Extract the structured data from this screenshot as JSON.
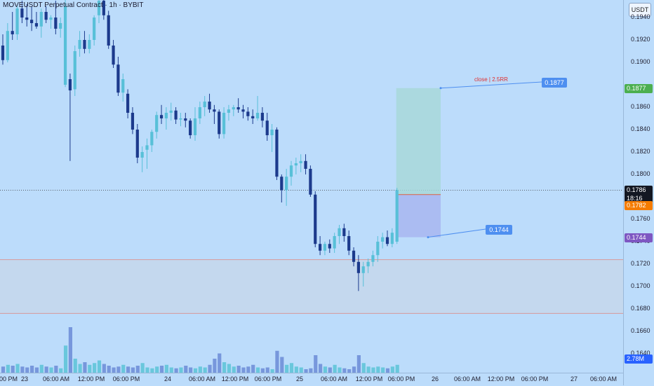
{
  "header": {
    "title": "MOVEUSDT Perpetual Contract · 1h · BYBIT"
  },
  "currency": "USDT",
  "price_axis": {
    "ticks": [
      "0.1940",
      "0.1920",
      "0.1900",
      "0.1860",
      "0.1840",
      "0.1820",
      "0.1800",
      "0.1760",
      "0.1740",
      "0.1720",
      "0.1700",
      "0.1680",
      "0.1660",
      "0.1640"
    ]
  },
  "price_labels": {
    "target": "0.1877",
    "current": "0.1786",
    "countdown": "18:16",
    "entry": "0.1782",
    "stop": "0.1744",
    "volume": "2.78M"
  },
  "colors": {
    "target": "#4caf50",
    "current": "#131722",
    "entry": "#f57c00",
    "stop": "#7e57c2",
    "volume": "#2962ff",
    "callout": "#4e8ff0",
    "bull": "#58c0d8",
    "bear": "#1c3a8c"
  },
  "callouts": {
    "target": "0.1877",
    "stop": "0.1744",
    "annotation": "close | 2.5RR"
  },
  "time_axis": {
    "labels": [
      "00 PM",
      "23",
      "06:00 AM",
      "12:00 PM",
      "06:00 PM",
      "24",
      "06:00 AM",
      "12:00 PM",
      "06:00 PM",
      "25",
      "06:00 AM",
      "12:00 PM",
      "06:00 PM",
      "26",
      "06:00 AM",
      "12:00 PM",
      "06:00 PM",
      "27",
      "06:00 AM"
    ]
  },
  "chart_data": {
    "type": "candlestick",
    "price_range": [
      0.162,
      0.196
    ],
    "time_start": "2024-11-22 20:00",
    "interval": "1h",
    "candles": [
      {
        "o": 0.1915,
        "h": 0.1925,
        "l": 0.1898,
        "c": 0.1902
      },
      {
        "o": 0.1902,
        "h": 0.1935,
        "l": 0.19,
        "c": 0.1928
      },
      {
        "o": 0.1928,
        "h": 0.1945,
        "l": 0.192,
        "c": 0.1925
      },
      {
        "o": 0.1925,
        "h": 0.195,
        "l": 0.192,
        "c": 0.1948
      },
      {
        "o": 0.1948,
        "h": 0.1955,
        "l": 0.1935,
        "c": 0.194
      },
      {
        "o": 0.194,
        "h": 0.1952,
        "l": 0.1932,
        "c": 0.1938
      },
      {
        "o": 0.1938,
        "h": 0.195,
        "l": 0.1928,
        "c": 0.1935
      },
      {
        "o": 0.1935,
        "h": 0.1945,
        "l": 0.193,
        "c": 0.1932
      },
      {
        "o": 0.1932,
        "h": 0.1948,
        "l": 0.1922,
        "c": 0.1945
      },
      {
        "o": 0.1945,
        "h": 0.195,
        "l": 0.1935,
        "c": 0.1938
      },
      {
        "o": 0.1938,
        "h": 0.1942,
        "l": 0.193,
        "c": 0.194
      },
      {
        "o": 0.194,
        "h": 0.1955,
        "l": 0.1925,
        "c": 0.193
      },
      {
        "o": 0.193,
        "h": 0.194,
        "l": 0.1922,
        "c": 0.1935
      },
      {
        "o": 0.188,
        "h": 0.1958,
        "l": 0.1878,
        "c": 0.195
      },
      {
        "o": 0.1885,
        "h": 0.189,
        "l": 0.1812,
        "c": 0.1875
      },
      {
        "o": 0.1876,
        "h": 0.1915,
        "l": 0.187,
        "c": 0.191
      },
      {
        "o": 0.1912,
        "h": 0.1928,
        "l": 0.1905,
        "c": 0.192
      },
      {
        "o": 0.192,
        "h": 0.1928,
        "l": 0.1908,
        "c": 0.1912
      },
      {
        "o": 0.1912,
        "h": 0.1925,
        "l": 0.1908,
        "c": 0.192
      },
      {
        "o": 0.192,
        "h": 0.1942,
        "l": 0.1915,
        "c": 0.194
      },
      {
        "o": 0.1942,
        "h": 0.1958,
        "l": 0.1935,
        "c": 0.1955
      },
      {
        "o": 0.1955,
        "h": 0.196,
        "l": 0.1938,
        "c": 0.1942
      },
      {
        "o": 0.1942,
        "h": 0.1946,
        "l": 0.1912,
        "c": 0.1915
      },
      {
        "o": 0.1915,
        "h": 0.192,
        "l": 0.1895,
        "c": 0.1898
      },
      {
        "o": 0.1898,
        "h": 0.1905,
        "l": 0.187,
        "c": 0.1873
      },
      {
        "o": 0.1873,
        "h": 0.189,
        "l": 0.1865,
        "c": 0.1885
      },
      {
        "o": 0.1872,
        "h": 0.1876,
        "l": 0.185,
        "c": 0.1855
      },
      {
        "o": 0.1855,
        "h": 0.186,
        "l": 0.1836,
        "c": 0.184
      },
      {
        "o": 0.184,
        "h": 0.1845,
        "l": 0.181,
        "c": 0.1815
      },
      {
        "o": 0.1815,
        "h": 0.1825,
        "l": 0.1802,
        "c": 0.182
      },
      {
        "o": 0.1822,
        "h": 0.1832,
        "l": 0.1805,
        "c": 0.1826
      },
      {
        "o": 0.1826,
        "h": 0.184,
        "l": 0.182,
        "c": 0.1838
      },
      {
        "o": 0.1838,
        "h": 0.1856,
        "l": 0.1832,
        "c": 0.1853
      },
      {
        "o": 0.1853,
        "h": 0.1862,
        "l": 0.1845,
        "c": 0.185
      },
      {
        "o": 0.185,
        "h": 0.186,
        "l": 0.184,
        "c": 0.1855
      },
      {
        "o": 0.1855,
        "h": 0.1864,
        "l": 0.1848,
        "c": 0.1857
      },
      {
        "o": 0.1857,
        "h": 0.186,
        "l": 0.1845,
        "c": 0.1849
      },
      {
        "o": 0.1849,
        "h": 0.1855,
        "l": 0.1843,
        "c": 0.185
      },
      {
        "o": 0.185,
        "h": 0.1855,
        "l": 0.1842,
        "c": 0.1848
      },
      {
        "o": 0.1848,
        "h": 0.185,
        "l": 0.1832,
        "c": 0.1835
      },
      {
        "o": 0.1835,
        "h": 0.186,
        "l": 0.183,
        "c": 0.185
      },
      {
        "o": 0.185,
        "h": 0.1865,
        "l": 0.1845,
        "c": 0.186
      },
      {
        "o": 0.186,
        "h": 0.187,
        "l": 0.1852,
        "c": 0.1865
      },
      {
        "o": 0.1865,
        "h": 0.1872,
        "l": 0.1855,
        "c": 0.1858
      },
      {
        "o": 0.1858,
        "h": 0.1862,
        "l": 0.1845,
        "c": 0.1856
      },
      {
        "o": 0.1856,
        "h": 0.1858,
        "l": 0.1832,
        "c": 0.1836
      },
      {
        "o": 0.1836,
        "h": 0.186,
        "l": 0.1832,
        "c": 0.1855
      },
      {
        "o": 0.1855,
        "h": 0.1862,
        "l": 0.1848,
        "c": 0.1858
      },
      {
        "o": 0.1858,
        "h": 0.1862,
        "l": 0.1852,
        "c": 0.186
      },
      {
        "o": 0.186,
        "h": 0.1868,
        "l": 0.1855,
        "c": 0.1858
      },
      {
        "o": 0.1858,
        "h": 0.1862,
        "l": 0.185,
        "c": 0.1856
      },
      {
        "o": 0.1856,
        "h": 0.186,
        "l": 0.1848,
        "c": 0.1852
      },
      {
        "o": 0.1852,
        "h": 0.1858,
        "l": 0.1845,
        "c": 0.185
      },
      {
        "o": 0.185,
        "h": 0.187,
        "l": 0.1848,
        "c": 0.1855
      },
      {
        "o": 0.1855,
        "h": 0.186,
        "l": 0.1842,
        "c": 0.1848
      },
      {
        "o": 0.1848,
        "h": 0.1855,
        "l": 0.183,
        "c": 0.1835
      },
      {
        "o": 0.1835,
        "h": 0.1845,
        "l": 0.182,
        "c": 0.184
      },
      {
        "o": 0.184,
        "h": 0.1842,
        "l": 0.1795,
        "c": 0.1798
      },
      {
        "o": 0.1798,
        "h": 0.18,
        "l": 0.1775,
        "c": 0.1786
      },
      {
        "o": 0.1786,
        "h": 0.1805,
        "l": 0.1772,
        "c": 0.1798
      },
      {
        "o": 0.1798,
        "h": 0.1812,
        "l": 0.179,
        "c": 0.1808
      },
      {
        "o": 0.1808,
        "h": 0.1815,
        "l": 0.18,
        "c": 0.181
      },
      {
        "o": 0.181,
        "h": 0.1818,
        "l": 0.1802,
        "c": 0.1812
      },
      {
        "o": 0.1812,
        "h": 0.1818,
        "l": 0.18,
        "c": 0.1805
      },
      {
        "o": 0.1805,
        "h": 0.1808,
        "l": 0.178,
        "c": 0.1782
      },
      {
        "o": 0.1782,
        "h": 0.1785,
        "l": 0.1735,
        "c": 0.1738
      },
      {
        "o": 0.1738,
        "h": 0.1745,
        "l": 0.1728,
        "c": 0.1732
      },
      {
        "o": 0.1732,
        "h": 0.174,
        "l": 0.1728,
        "c": 0.1738
      },
      {
        "o": 0.1738,
        "h": 0.1742,
        "l": 0.173,
        "c": 0.1734
      },
      {
        "o": 0.1734,
        "h": 0.1748,
        "l": 0.173,
        "c": 0.1745
      },
      {
        "o": 0.1745,
        "h": 0.1755,
        "l": 0.1738,
        "c": 0.1752
      },
      {
        "o": 0.1752,
        "h": 0.1756,
        "l": 0.174,
        "c": 0.1745
      },
      {
        "o": 0.1745,
        "h": 0.175,
        "l": 0.1728,
        "c": 0.1732
      },
      {
        "o": 0.1732,
        "h": 0.1735,
        "l": 0.1718,
        "c": 0.1722
      },
      {
        "o": 0.1722,
        "h": 0.1728,
        "l": 0.1696,
        "c": 0.1712
      },
      {
        "o": 0.1712,
        "h": 0.1722,
        "l": 0.17,
        "c": 0.1718
      },
      {
        "o": 0.1718,
        "h": 0.1725,
        "l": 0.1712,
        "c": 0.1722
      },
      {
        "o": 0.1722,
        "h": 0.1732,
        "l": 0.1718,
        "c": 0.1728
      },
      {
        "o": 0.1728,
        "h": 0.1745,
        "l": 0.1722,
        "c": 0.174
      },
      {
        "o": 0.174,
        "h": 0.1748,
        "l": 0.1734,
        "c": 0.1744
      },
      {
        "o": 0.1744,
        "h": 0.175,
        "l": 0.1736,
        "c": 0.1738
      },
      {
        "o": 0.1738,
        "h": 0.1752,
        "l": 0.1735,
        "c": 0.1748
      },
      {
        "o": 0.174,
        "h": 0.1788,
        "l": 0.1738,
        "c": 0.1786
      }
    ],
    "volume": [
      0.35,
      0.45,
      0.4,
      0.5,
      0.35,
      0.3,
      0.4,
      0.3,
      0.45,
      0.35,
      0.3,
      0.4,
      0.25,
      1.55,
      2.6,
      0.8,
      0.5,
      0.6,
      0.45,
      0.55,
      0.7,
      0.5,
      0.4,
      0.3,
      0.35,
      0.45,
      0.35,
      0.3,
      0.4,
      0.55,
      0.3,
      0.25,
      0.35,
      0.4,
      0.45,
      0.3,
      0.25,
      0.3,
      0.4,
      0.3,
      0.25,
      0.35,
      0.3,
      0.45,
      0.8,
      1.1,
      0.6,
      0.5,
      0.35,
      0.4,
      0.3,
      0.35,
      0.45,
      0.3,
      0.25,
      0.3,
      0.2,
      1.25,
      0.9,
      0.45,
      0.55,
      0.35,
      0.3,
      0.2,
      0.25,
      1.0,
      0.5,
      0.35,
      0.3,
      0.45,
      0.3,
      0.25,
      0.2,
      0.35,
      1.0,
      0.55,
      0.35,
      0.3,
      0.35,
      0.3,
      0.25,
      0.35,
      0.45
    ],
    "horizontal_zone": [
      0.1676,
      0.1724
    ],
    "position": {
      "entry": 0.1782,
      "target": 0.1877,
      "stop": 0.1744,
      "ratio": "2.5RR"
    }
  }
}
